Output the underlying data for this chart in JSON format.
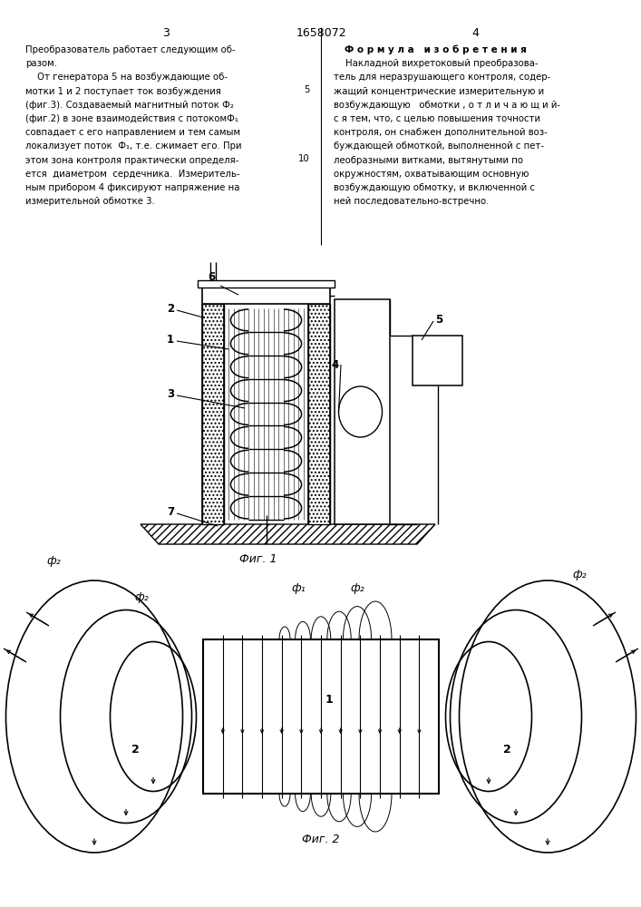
{
  "page_numbers": [
    "3",
    "4"
  ],
  "patent_number": "1658072",
  "left_text": [
    "Преобразователь работает следующим об-",
    "разом.",
    "    От генератора 5 на возбуждающие об-",
    "мотки 1 и 2 поступает ток возбуждения",
    "(фиг.3). Создаваемый магнитный поток Ф₂",
    "(фиг.2) в зоне взаимодействия с потокомФ₁",
    "совпадает с его направлением и тем самым",
    "локализует поток  Ф₁, т.е. сжимает его. При",
    "этом зона контроля практически определя-",
    "ется  диаметром  сердечника.  Измеритель-",
    "ным прибором 4 фиксируют напряжение на",
    "измерительной обмотке 3."
  ],
  "right_text_title": "Ф о р м у л а   и з о б р е т е н и я",
  "right_text": [
    "    Накладной вихретоковый преобразова-",
    "тель для неразрушающего контроля, содер-",
    "жащий концентрические измерительную и",
    "возбуждающую   обмотки , о т л и ч а ю щ и й-",
    "с я тем, что, с целью повышения точности",
    "контроля, он снабжен дополнительной воз-",
    "буждающей обмоткой, выполненной с пет-",
    "леобразными витками, вытянутыми по",
    "окружностям, охватывающим основную",
    "возбуждающую обмотку, и включенной с",
    "ней последовательно-встречно."
  ],
  "fig1_label": "Фиг. 1",
  "fig2_label": "Фиг. 2",
  "background": "#ffffff",
  "ink": "#000000"
}
